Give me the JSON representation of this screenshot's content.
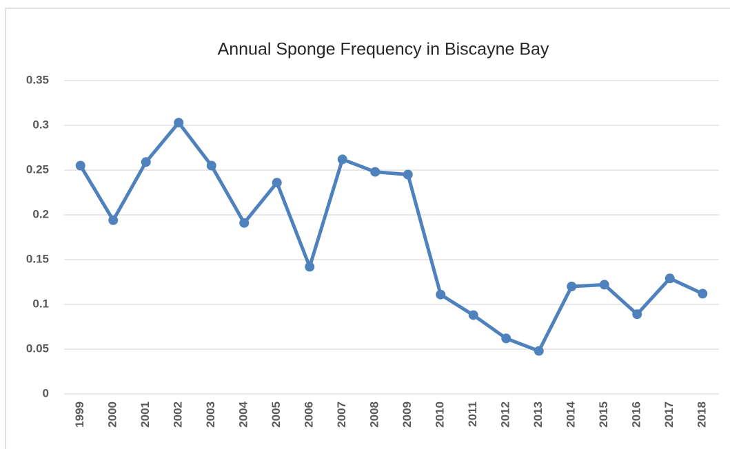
{
  "chart_data": {
    "type": "line",
    "title": "Annual Sponge Frequency in Biscayne Bay",
    "categories": [
      "1999",
      "2000",
      "2001",
      "2002",
      "2003",
      "2004",
      "2005",
      "2006",
      "2007",
      "2008",
      "2009",
      "2010",
      "2011",
      "2012",
      "2013",
      "2014",
      "2015",
      "2016",
      "2017",
      "2018"
    ],
    "series": [
      {
        "name": "Sponge Frequency",
        "color": "#4f81bd",
        "values": [
          0.255,
          0.194,
          0.259,
          0.303,
          0.255,
          0.191,
          0.236,
          0.142,
          0.262,
          0.248,
          0.245,
          0.111,
          0.088,
          0.062,
          0.048,
          0.12,
          0.122,
          0.089,
          0.129,
          0.112
        ]
      }
    ],
    "ylim": [
      0,
      0.35
    ],
    "yticks": [
      0,
      0.05,
      0.1,
      0.15,
      0.2,
      0.25,
      0.3,
      0.35
    ],
    "grid": true
  }
}
